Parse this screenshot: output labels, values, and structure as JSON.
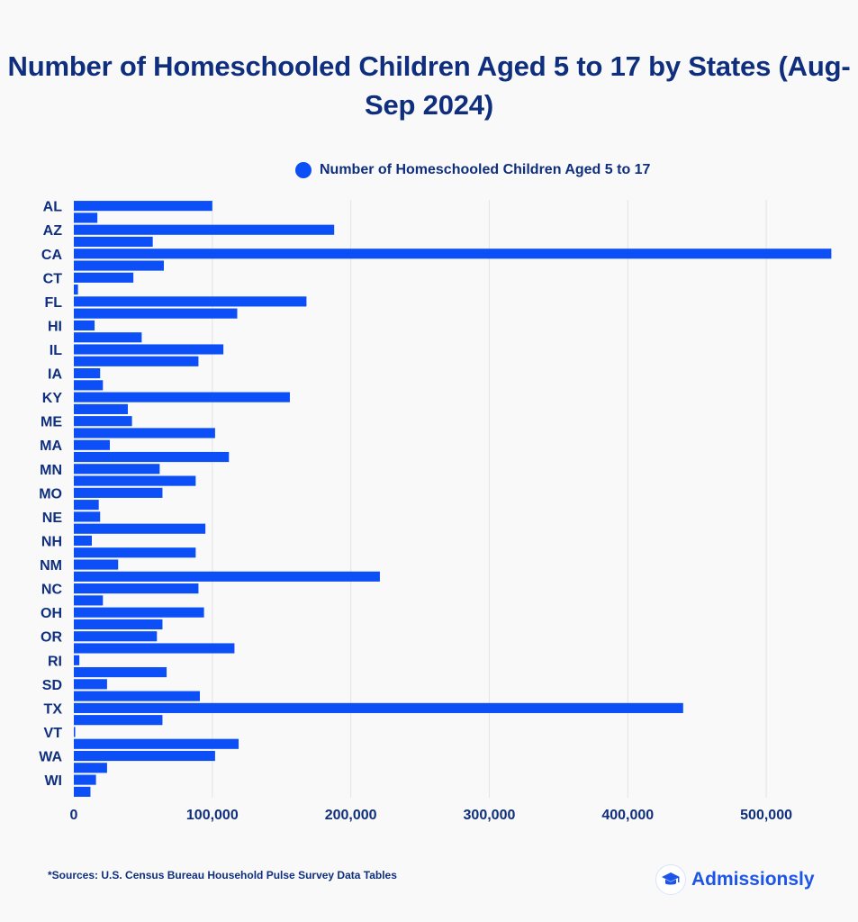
{
  "title": "Number of Homeschooled Children Aged 5 to 17 by States (Aug-Sep 2024)",
  "footer": {
    "source": "*Sources: U.S. Census Bureau Household Pulse Survey Data Tables",
    "brand": "Admissionsly"
  },
  "colors": {
    "bar": "#0c4ff7",
    "title": "#0f2f7e",
    "grid": "#e3e3e8"
  },
  "chart_data": {
    "type": "bar",
    "orientation": "horizontal",
    "title": "Number of Homeschooled Children Aged 5 to 17 by States (Aug-Sep 2024)",
    "legend": {
      "position": "top",
      "entries": [
        "Number of Homeschooled Children Aged 5 to 17"
      ]
    },
    "grid": true,
    "xlim": [
      0,
      550000
    ],
    "x_ticks": [
      0,
      100000,
      200000,
      300000,
      400000,
      500000
    ],
    "x_tick_labels": [
      "0",
      "100,000",
      "200,000",
      "300,000",
      "400,000",
      "500,000"
    ],
    "visible_category_labels": [
      "AL",
      "AZ",
      "CA",
      "CT",
      "FL",
      "HI",
      "IL",
      "IA",
      "KY",
      "ME",
      "MA",
      "MN",
      "MO",
      "NE",
      "NH",
      "NM",
      "NC",
      "OH",
      "OR",
      "RI",
      "SD",
      "TX",
      "VT",
      "WA",
      "WI"
    ],
    "series": [
      {
        "name": "Number of Homeschooled Children Aged 5 to 17",
        "values": [
          100000,
          17000,
          188000,
          57000,
          547000,
          65000,
          43000,
          3000,
          168000,
          118000,
          15000,
          49000,
          108000,
          90000,
          19000,
          21000,
          156000,
          39000,
          42000,
          102000,
          26000,
          112000,
          62000,
          88000,
          64000,
          18000,
          19000,
          95000,
          13000,
          88000,
          32000,
          221000,
          90000,
          21000,
          94000,
          64000,
          60000,
          116000,
          4000,
          67000,
          24000,
          91000,
          440000,
          64000,
          1000,
          119000,
          102000,
          24000,
          16000,
          12000
        ]
      }
    ]
  }
}
